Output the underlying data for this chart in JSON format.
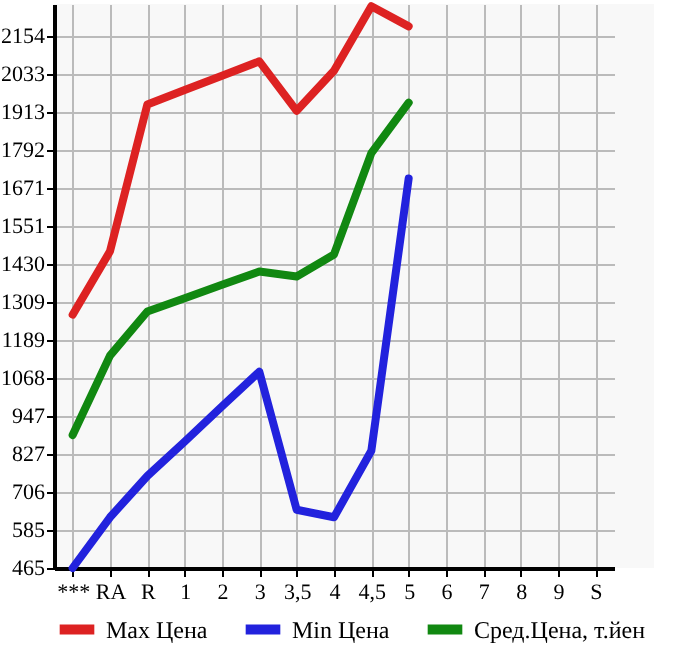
{
  "chart_data": {
    "type": "line",
    "categories": [
      "***",
      "RA",
      "R",
      "1",
      "2",
      "3",
      "3,5",
      "4",
      "4,5",
      "5",
      "6",
      "7",
      "8",
      "9",
      "S"
    ],
    "series": [
      {
        "name": "Max Цена",
        "color": "#dd2222",
        "values": [
          1269,
          1470,
          1936,
          1982,
          2027,
          2073,
          1916,
          2043,
          2248,
          2184,
          null,
          null,
          null,
          null,
          null
        ]
      },
      {
        "name": "Min Цена",
        "color": "#2222dd",
        "values": [
          465,
          626,
          757,
          866,
          978,
          1088,
          650,
          626,
          837,
          1701,
          null,
          null,
          null,
          null,
          null
        ]
      },
      {
        "name": "Сред.Цена, т.йен",
        "color": "#118811",
        "values": [
          887,
          1139,
          1279,
          1321,
          1364,
          1406,
          1390,
          1460,
          1782,
          1942,
          null,
          null,
          null,
          null,
          null
        ]
      }
    ],
    "ylim": [
      465,
      2255
    ],
    "yticks": [
      465,
      585,
      706,
      827,
      947,
      1068,
      1189,
      1309,
      1430,
      1551,
      1671,
      1792,
      1913,
      2033,
      2154
    ],
    "grid": true,
    "legend": "bottom",
    "marker": "none",
    "line_style": "solid"
  }
}
